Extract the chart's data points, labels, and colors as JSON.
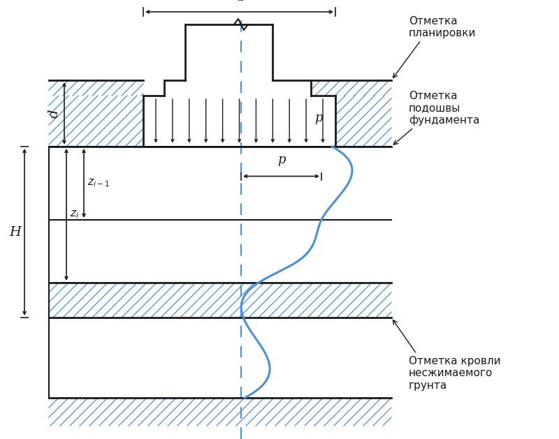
{
  "bg_color": "#ffffff",
  "line_color": "#1a1a1a",
  "blue_color": "#4a90d9",
  "label_b": "b",
  "label_d": "d",
  "label_p_top": "p",
  "label_p_mid": "p",
  "label_H": "H",
  "text_otmetka_plan": "Отметка\nпланировки",
  "text_otmetka_pod": "Отметка\nподошвы\nфундамента",
  "text_otmetka_krov": "Отметка кровли\nнесжимаемого\nгрунта",
  "font_size_label": 12,
  "font_size_text": 11,
  "font_size_small": 10
}
